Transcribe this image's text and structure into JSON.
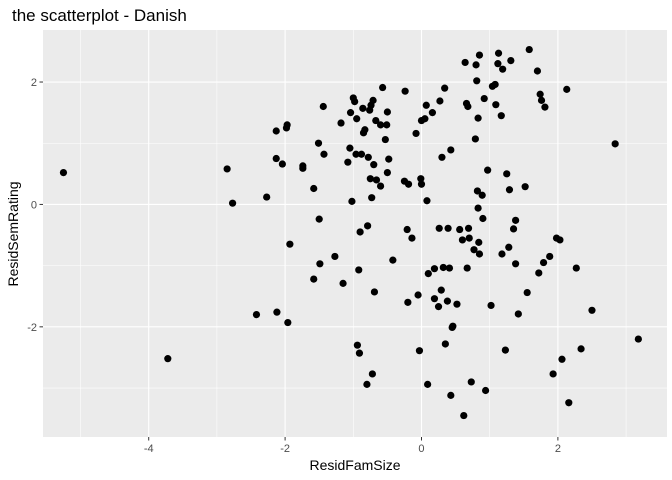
{
  "chart_data": {
    "type": "scatter",
    "title": "the scatterplot - Danish",
    "xlabel": "ResidFamSize",
    "ylabel": "ResidSemRating",
    "xlim": [
      -5.55,
      3.6
    ],
    "ylim": [
      -3.8,
      2.85
    ],
    "x_ticks": [
      -4,
      -2,
      0,
      2
    ],
    "x_tick_labels": [
      "-4",
      "-2",
      "0",
      "2"
    ],
    "y_ticks": [
      -2,
      0,
      2
    ],
    "y_tick_labels": [
      "-2",
      "0",
      "2"
    ],
    "grid": true,
    "legend": "none",
    "colors": {
      "panel": "#ebebeb",
      "grid": "#ffffff",
      "point": "#000000",
      "tick": "#333333"
    },
    "points": [
      [
        -5.25,
        0.52
      ],
      [
        -3.72,
        -2.52
      ],
      [
        -2.85,
        0.58
      ],
      [
        -2.77,
        0.02
      ],
      [
        -2.42,
        -1.8
      ],
      [
        -2.27,
        0.12
      ],
      [
        -2.13,
        1.2
      ],
      [
        -2.13,
        0.75
      ],
      [
        -2.12,
        -1.76
      ],
      [
        -2.04,
        0.66
      ],
      [
        -1.98,
        1.25
      ],
      [
        -1.97,
        1.3
      ],
      [
        -1.96,
        -1.93
      ],
      [
        -1.93,
        -0.65
      ],
      [
        -1.74,
        0.63
      ],
      [
        -1.74,
        0.59
      ],
      [
        -1.58,
        0.26
      ],
      [
        -1.58,
        -1.22
      ],
      [
        -1.51,
        1.0
      ],
      [
        -1.5,
        -0.24
      ],
      [
        -1.49,
        -0.97
      ],
      [
        -1.44,
        1.6
      ],
      [
        -1.43,
        0.82
      ],
      [
        -1.27,
        -0.85
      ],
      [
        -1.18,
        1.33
      ],
      [
        -1.15,
        -1.29
      ],
      [
        -1.08,
        0.69
      ],
      [
        -1.05,
        0.92
      ],
      [
        -1.04,
        1.5
      ],
      [
        -1.02,
        0.05
      ],
      [
        -1.0,
        1.74
      ],
      [
        -0.98,
        1.68
      ],
      [
        -0.96,
        0.82
      ],
      [
        -0.95,
        1.4
      ],
      [
        -0.94,
        -2.3
      ],
      [
        -0.92,
        -1.07
      ],
      [
        -0.91,
        -2.43
      ],
      [
        -0.9,
        -0.45
      ],
      [
        -0.88,
        0.82
      ],
      [
        -0.86,
        1.57
      ],
      [
        -0.85,
        1.17
      ],
      [
        -0.83,
        1.22
      ],
      [
        -0.8,
        -2.94
      ],
      [
        -0.79,
        -0.35
      ],
      [
        -0.78,
        0.77
      ],
      [
        -0.76,
        1.54
      ],
      [
        -0.75,
        0.42
      ],
      [
        -0.74,
        1.62
      ],
      [
        -0.73,
        0.11
      ],
      [
        -0.72,
        -2.77
      ],
      [
        -0.71,
        1.7
      ],
      [
        -0.7,
        0.65
      ],
      [
        -0.69,
        -1.43
      ],
      [
        -0.67,
        1.37
      ],
      [
        -0.66,
        0.4
      ],
      [
        -0.6,
        1.3
      ],
      [
        -0.6,
        0.3
      ],
      [
        -0.57,
        1.91
      ],
      [
        -0.53,
        1.06
      ],
      [
        -0.51,
        1.3
      ],
      [
        -0.5,
        0.52
      ],
      [
        -0.5,
        1.51
      ],
      [
        -0.48,
        0.74
      ],
      [
        -0.42,
        -0.91
      ],
      [
        -0.25,
        0.38
      ],
      [
        -0.24,
        1.85
      ],
      [
        -0.21,
        -0.41
      ],
      [
        -0.2,
        -1.6
      ],
      [
        -0.19,
        0.33
      ],
      [
        -0.14,
        -0.55
      ],
      [
        -0.08,
        1.16
      ],
      [
        -0.05,
        -1.48
      ],
      [
        -0.03,
        -2.39
      ],
      [
        -0.01,
        0.42
      ],
      [
        0.0,
        0.33
      ],
      [
        0.0,
        1.37
      ],
      [
        0.05,
        1.4
      ],
      [
        0.07,
        1.62
      ],
      [
        0.08,
        0.06
      ],
      [
        0.09,
        -2.94
      ],
      [
        0.1,
        -1.13
      ],
      [
        0.16,
        1.5
      ],
      [
        0.19,
        -1.05
      ],
      [
        0.19,
        -1.54
      ],
      [
        0.25,
        -1.67
      ],
      [
        0.26,
        -0.39
      ],
      [
        0.27,
        1.69
      ],
      [
        0.29,
        -1.4
      ],
      [
        0.3,
        0.77
      ],
      [
        0.32,
        -1.03
      ],
      [
        0.34,
        1.9
      ],
      [
        0.35,
        -2.28
      ],
      [
        0.38,
        -1.58
      ],
      [
        0.39,
        -0.39
      ],
      [
        0.41,
        -1.04
      ],
      [
        0.43,
        -3.12
      ],
      [
        0.43,
        0.89
      ],
      [
        0.45,
        -2.01
      ],
      [
        0.46,
        -1.99
      ],
      [
        0.52,
        -1.63
      ],
      [
        0.56,
        -0.41
      ],
      [
        0.6,
        -0.58
      ],
      [
        0.62,
        -3.45
      ],
      [
        0.64,
        2.32
      ],
      [
        0.66,
        1.65
      ],
      [
        0.67,
        -1.04
      ],
      [
        0.68,
        1.6
      ],
      [
        0.69,
        -0.39
      ],
      [
        0.7,
        -0.55
      ],
      [
        0.73,
        -2.9
      ],
      [
        0.77,
        -0.74
      ],
      [
        0.79,
        1.07
      ],
      [
        0.8,
        2.28
      ],
      [
        0.81,
        2.02
      ],
      [
        0.82,
        0.22
      ],
      [
        0.83,
        1.41
      ],
      [
        0.83,
        -0.06
      ],
      [
        0.84,
        -0.62
      ],
      [
        0.85,
        -0.81
      ],
      [
        0.85,
        2.44
      ],
      [
        0.89,
        0.15
      ],
      [
        0.9,
        -0.23
      ],
      [
        0.92,
        1.73
      ],
      [
        0.94,
        -3.04
      ],
      [
        0.97,
        0.56
      ],
      [
        1.02,
        -1.65
      ],
      [
        1.04,
        1.93
      ],
      [
        1.08,
        1.96
      ],
      [
        1.09,
        1.63
      ],
      [
        1.12,
        2.3
      ],
      [
        1.13,
        2.47
      ],
      [
        1.17,
        1.45
      ],
      [
        1.18,
        -0.81
      ],
      [
        1.19,
        2.21
      ],
      [
        1.23,
        -2.38
      ],
      [
        1.25,
        0.5
      ],
      [
        1.28,
        -0.7
      ],
      [
        1.29,
        0.24
      ],
      [
        1.31,
        2.35
      ],
      [
        1.35,
        -0.4
      ],
      [
        1.38,
        -0.97
      ],
      [
        1.38,
        -0.26
      ],
      [
        1.42,
        -1.79
      ],
      [
        1.52,
        0.29
      ],
      [
        1.55,
        -1.44
      ],
      [
        1.58,
        2.53
      ],
      [
        1.7,
        2.18
      ],
      [
        1.72,
        -1.12
      ],
      [
        1.74,
        1.8
      ],
      [
        1.76,
        1.7
      ],
      [
        1.79,
        -0.95
      ],
      [
        1.81,
        1.59
      ],
      [
        1.88,
        -0.85
      ],
      [
        1.93,
        -2.77
      ],
      [
        1.98,
        -0.55
      ],
      [
        2.03,
        -0.58
      ],
      [
        2.06,
        -2.53
      ],
      [
        2.13,
        1.88
      ],
      [
        2.16,
        -3.24
      ],
      [
        2.27,
        -1.04
      ],
      [
        2.34,
        -2.36
      ],
      [
        2.5,
        -1.73
      ],
      [
        2.84,
        0.99
      ],
      [
        3.18,
        -2.2
      ]
    ]
  }
}
